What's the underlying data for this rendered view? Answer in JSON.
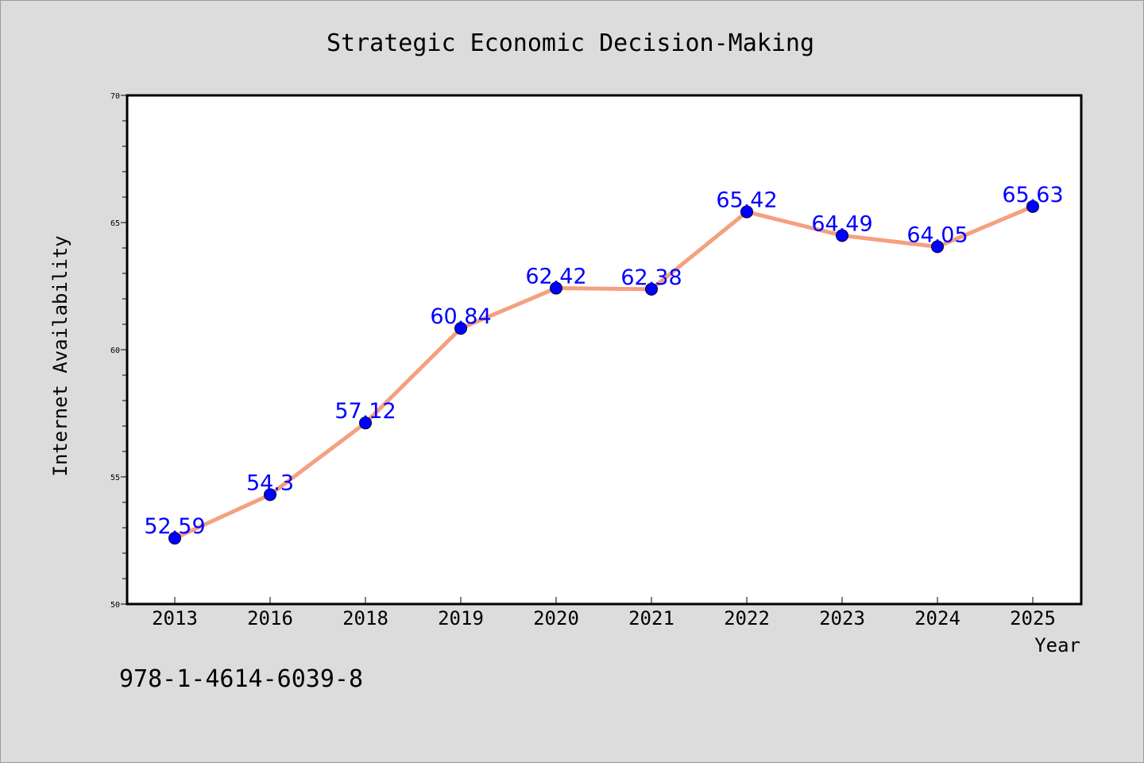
{
  "colors": {
    "background": "#dcdcdc",
    "plot_background": "#ffffff",
    "line": "#f4a081",
    "marker": "#0000ff",
    "data_label": "#0000ff",
    "text": "#000000"
  },
  "footer_text": "978-1-4614-6039-8",
  "chart_data": {
    "type": "line",
    "title": "Strategic Economic Decision-Making",
    "xlabel": "Year",
    "ylabel": "Internet Availability",
    "categories": [
      "2013",
      "2016",
      "2018",
      "2019",
      "2020",
      "2021",
      "2022",
      "2023",
      "2024",
      "2025"
    ],
    "series": [
      {
        "values": [
          52.59,
          54.3,
          57.12,
          60.84,
          62.42,
          62.38,
          65.42,
          64.49,
          64.05,
          65.63
        ],
        "labels": [
          "52.59",
          "54.3",
          "57.12",
          "60.84",
          "62.42",
          "62.38",
          "65.42",
          "64.49",
          "64.05",
          "65.63"
        ]
      }
    ],
    "ylim": [
      50,
      70
    ],
    "y_ticks": [
      "50",
      "55",
      "60",
      "65",
      "70"
    ],
    "y_minor_step": 1,
    "grid": false,
    "legend": "none"
  }
}
